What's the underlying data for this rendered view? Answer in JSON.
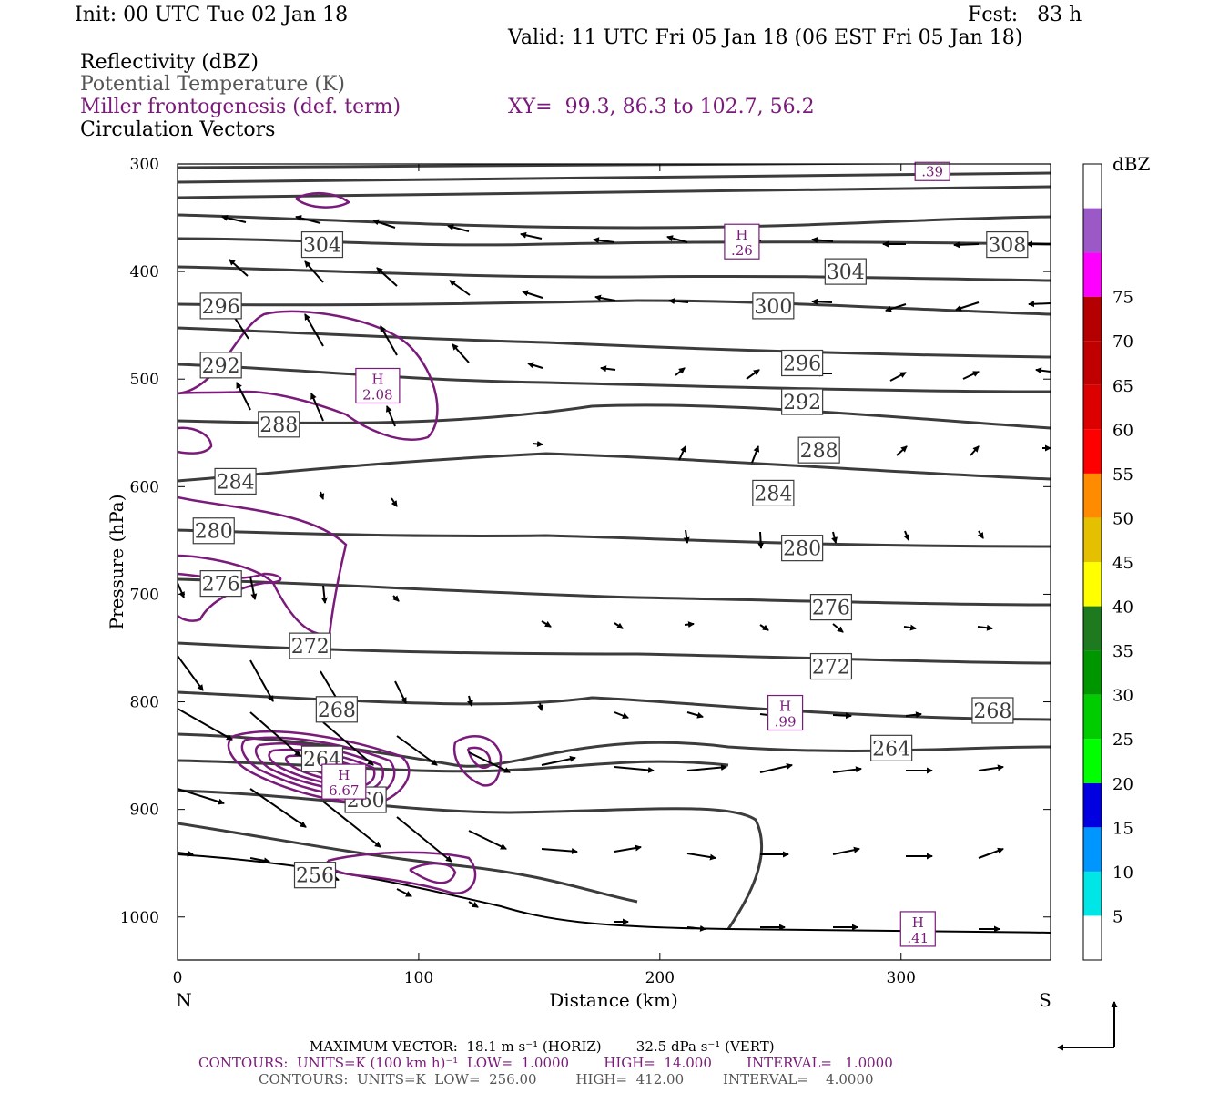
{
  "header": {
    "init": "Init: 00 UTC Tue 02 Jan 18",
    "fcst": "Fcst:   83 h",
    "valid": "Valid: 11 UTC Fri 05 Jan 18 (06 EST Fri 05 Jan 18)",
    "field1": "Reflectivity (dBZ)",
    "field2": "Potential Temperature (K)",
    "field3": "Miller frontogenesis (def. term)",
    "xy": "XY=  99.3, 86.3 to 102.7, 56.2",
    "field4": "Circulation Vectors"
  },
  "footer": {
    "max_vector": "MAXIMUM VECTOR:  18.1 m s⁻¹ (HORIZ)        32.5 dPa s⁻¹ (VERT)",
    "contours1": "CONTOURS:  UNITS=K (100 km h)⁻¹  LOW=  1.0000        HIGH=  14.000        INTERVAL=   1.0000",
    "contours2": "CONTOURS:  UNITS=K  LOW=  256.00         HIGH=  412.00         INTERVAL=    4.0000"
  },
  "axis_end_labels": {
    "left": "N",
    "right": "S"
  },
  "colorbar": {
    "title": "dBZ",
    "colors": [
      "#ffffff",
      "#00e5e5",
      "#0096ff",
      "#0000e0",
      "#00ff00",
      "#00cc00",
      "#009600",
      "#1e7a1e",
      "#ffff00",
      "#e5c000",
      "#ff8c00",
      "#ff0000",
      "#dd0000",
      "#c00000",
      "#b40000",
      "#ff00ff",
      "#9b59c8",
      "#ffffff"
    ]
  },
  "colors": {
    "theta": "#3c3c3c",
    "frontogenesis": "#7a1a7a"
  },
  "chart_data": {
    "type": "contour",
    "xlabel": "Distance (km)",
    "ylabel": "Pressure (hPa)",
    "xlim": [
      0,
      362
    ],
    "ylim": [
      1040,
      300
    ],
    "x_ticks": [
      0,
      100,
      200,
      300
    ],
    "y_ticks": [
      300,
      400,
      500,
      600,
      700,
      800,
      900,
      1000
    ],
    "colorbar_ticks": [
      5,
      10,
      15,
      20,
      25,
      30,
      35,
      40,
      45,
      50,
      55,
      60,
      65,
      70,
      75
    ],
    "theta_labels": [
      {
        "text": "304",
        "x": 60,
        "p": 375
      },
      {
        "text": "308",
        "x": 344,
        "p": 375
      },
      {
        "text": "304",
        "x": 277,
        "p": 400
      },
      {
        "text": "300",
        "x": 247,
        "p": 432
      },
      {
        "text": "296",
        "x": 18,
        "p": 432
      },
      {
        "text": "296",
        "x": 259,
        "p": 485
      },
      {
        "text": "292",
        "x": 18,
        "p": 487
      },
      {
        "text": "292",
        "x": 259,
        "p": 521
      },
      {
        "text": "288",
        "x": 42,
        "p": 542
      },
      {
        "text": "288",
        "x": 266,
        "p": 566
      },
      {
        "text": "284",
        "x": 24,
        "p": 595
      },
      {
        "text": "284",
        "x": 247,
        "p": 606
      },
      {
        "text": "280",
        "x": 15,
        "p": 641
      },
      {
        "text": "280",
        "x": 259,
        "p": 657
      },
      {
        "text": "276",
        "x": 18,
        "p": 690
      },
      {
        "text": "276",
        "x": 271,
        "p": 712
      },
      {
        "text": "272",
        "x": 55,
        "p": 748
      },
      {
        "text": "272",
        "x": 271,
        "p": 767
      },
      {
        "text": "268",
        "x": 66,
        "p": 807
      },
      {
        "text": "268",
        "x": 338,
        "p": 808
      },
      {
        "text": "264",
        "x": 296,
        "p": 843
      },
      {
        "text": "264",
        "x": 60,
        "p": 853
      },
      {
        "text": "260",
        "x": 78,
        "p": 891
      },
      {
        "text": "256",
        "x": 57,
        "p": 961
      }
    ],
    "frontogenesis_maxima": [
      {
        "label": "H",
        "value": "2.08",
        "x": 83,
        "p": 507
      },
      {
        "label": "H",
        "value": ".26",
        "x": 234,
        "p": 373
      },
      {
        "label": "H",
        "value": ".99",
        "x": 252,
        "p": 811
      },
      {
        "label": "H",
        "value": "6.67",
        "x": 69,
        "p": 875
      },
      {
        "label": "H",
        "value": ".41",
        "x": 307,
        "p": 1012
      },
      {
        "label": "",
        "value": ".39",
        "x": 313,
        "p": 307
      }
    ]
  }
}
